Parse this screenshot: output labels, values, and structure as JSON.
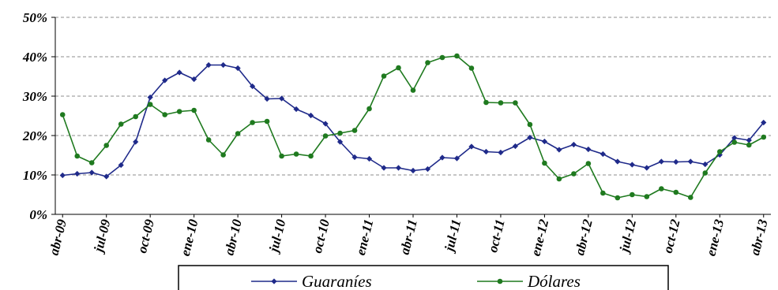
{
  "chart_data": {
    "type": "line",
    "title": "",
    "xlabel": "",
    "ylabel": "",
    "ylim": [
      0,
      50
    ],
    "y_ticks": [
      "0%",
      "10%",
      "20%",
      "30%",
      "40%",
      "50%"
    ],
    "grid": "horizontal dashed",
    "legend_position": "bottom",
    "x": [
      "abr-09",
      "may-09",
      "jun-09",
      "jul-09",
      "ago-09",
      "sep-09",
      "oct-09",
      "nov-09",
      "dic-09",
      "ene-10",
      "feb-10",
      "mar-10",
      "abr-10",
      "may-10",
      "jun-10",
      "jul-10",
      "ago-10",
      "sep-10",
      "oct-10",
      "nov-10",
      "dic-10",
      "ene-11",
      "feb-11",
      "mar-11",
      "abr-11",
      "may-11",
      "jun-11",
      "jul-11",
      "ago-11",
      "sep-11",
      "oct-11",
      "nov-11",
      "dic-11",
      "ene-12",
      "feb-12",
      "mar-12",
      "abr-12",
      "may-12",
      "jun-12",
      "jul-12",
      "ago-12",
      "sep-12",
      "oct-12",
      "nov-12",
      "dic-12",
      "ene-13",
      "feb-13",
      "mar-13",
      "abr-13"
    ],
    "x_tick_labels": [
      "abr-09",
      "jul-09",
      "oct-09",
      "ene-10",
      "abr-10",
      "jul-10",
      "oct-10",
      "ene-11",
      "abr-11",
      "jul-11",
      "oct-11",
      "ene-12",
      "abr-12",
      "jul-12",
      "oct-12",
      "ene-13",
      "abr-13"
    ],
    "series": [
      {
        "name": "Guaraníes",
        "color": "#1f2a8a",
        "marker": "diamond",
        "values": [
          9.9,
          10.3,
          10.6,
          9.6,
          12.5,
          18.4,
          29.7,
          34.0,
          36.0,
          34.3,
          37.9,
          37.9,
          37.1,
          32.5,
          29.3,
          29.4,
          26.7,
          25.1,
          23.0,
          18.4,
          14.5,
          14.1,
          11.8,
          11.8,
          11.1,
          11.5,
          14.4,
          14.2,
          17.2,
          15.9,
          15.7,
          17.3,
          19.5,
          18.5,
          16.4,
          17.7,
          16.5,
          15.3,
          13.4,
          12.6,
          11.8,
          13.4,
          13.3,
          13.4,
          12.7,
          15.1,
          19.4,
          18.8,
          23.3
        ]
      },
      {
        "name": "Dólares",
        "color": "#1f7a1f",
        "marker": "circle",
        "values": [
          25.3,
          14.8,
          13.1,
          17.5,
          22.9,
          24.8,
          27.9,
          25.3,
          26.1,
          26.4,
          18.9,
          15.1,
          20.5,
          23.3,
          23.6,
          14.8,
          15.3,
          14.8,
          19.9,
          20.6,
          21.3,
          26.8,
          35.1,
          37.2,
          31.5,
          38.5,
          39.8,
          40.2,
          37.1,
          28.4,
          28.3,
          28.3,
          22.8,
          13.0,
          9.0,
          10.3,
          12.9,
          5.4,
          4.2,
          5.0,
          4.5,
          6.5,
          5.6,
          4.3,
          10.5,
          15.9,
          18.3,
          17.6,
          19.6
        ]
      }
    ]
  }
}
